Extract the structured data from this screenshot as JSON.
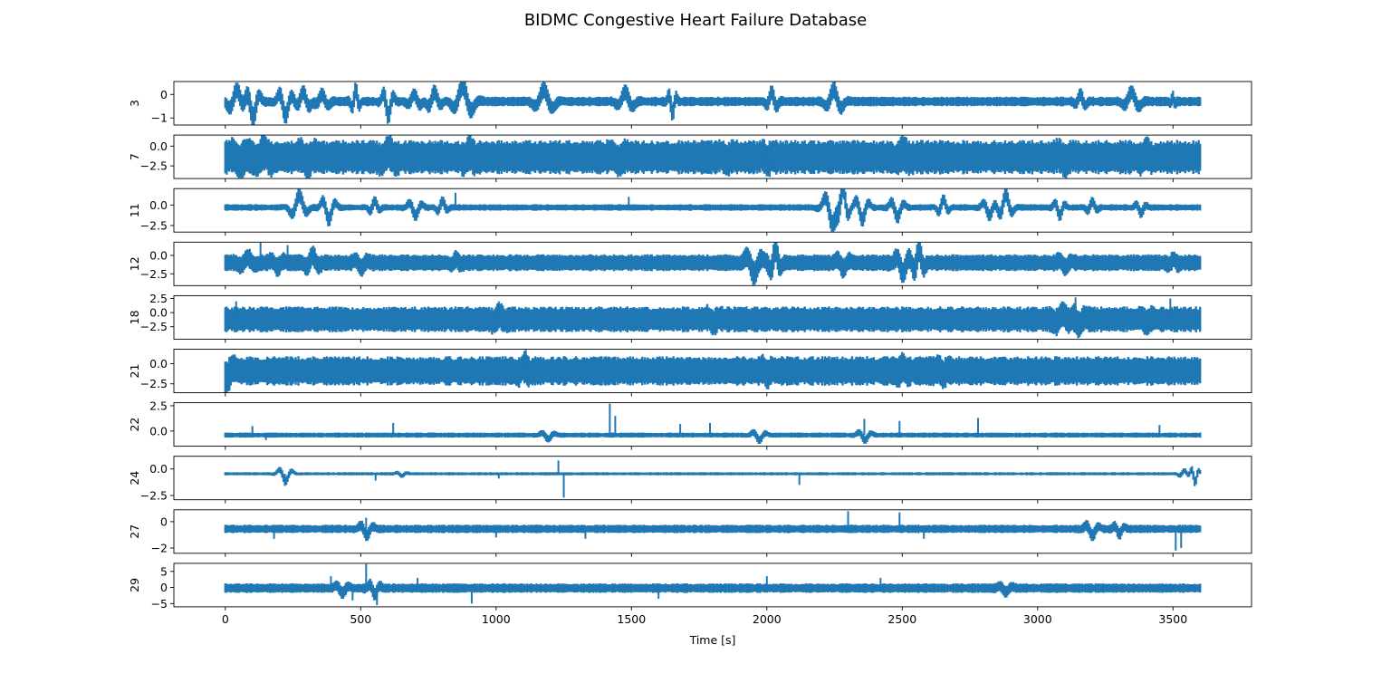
{
  "chart_data": {
    "type": "line",
    "title": "BIDMC Congestive Heart Failure Database",
    "xlabel": "Time [s]",
    "xlim": [
      -190,
      3790
    ],
    "xticks": [
      0,
      500,
      1000,
      1500,
      2000,
      2500,
      3000,
      3500
    ],
    "x_end": 3600,
    "color": "#1f77b4",
    "grid": false,
    "legend": "none",
    "series": [
      {
        "name": "3",
        "ylim": [
          -1.3,
          0.55
        ],
        "yticks": [
          -1,
          0
        ],
        "yticklabels": [
          "−1",
          "0"
        ],
        "center": -0.3,
        "band": 0.18,
        "events": [
          [
            40,
            0.5,
            0.6
          ],
          [
            100,
            -0.7,
            0.5
          ],
          [
            220,
            -0.6,
            0.5
          ],
          [
            290,
            0.4,
            -0.5
          ],
          [
            360,
            0.3,
            -0.5
          ],
          [
            480,
            0.5,
            0.3
          ],
          [
            600,
            -0.6,
            0.4
          ],
          [
            700,
            0.3,
            -0.5
          ],
          [
            770,
            0.4,
            0.5
          ],
          [
            880,
            0.7,
            -0.7
          ],
          [
            1180,
            0.5,
            -0.7
          ],
          [
            1480,
            0.4,
            -0.6
          ],
          [
            1650,
            -0.5,
            0.3
          ],
          [
            2020,
            0.4,
            -0.4
          ],
          [
            2250,
            0.5,
            -0.6
          ],
          [
            3160,
            0.3,
            -0.4
          ],
          [
            3350,
            0.4,
            -0.6
          ],
          [
            3500,
            0.2,
            -0.2
          ]
        ],
        "spikes": []
      },
      {
        "name": "7",
        "ylim": [
          -4.1,
          1.4
        ],
        "yticks": [
          -2.5,
          0.0
        ],
        "yticklabels": [
          "−2.5",
          "0.0"
        ],
        "center": -1.4,
        "band": 1.9,
        "events": [
          [
            50,
            -0.6,
            0.6
          ],
          [
            140,
            0.8,
            0.6
          ],
          [
            300,
            -0.6,
            0.6
          ],
          [
            600,
            0.7,
            0.6
          ],
          [
            900,
            0.6,
            0.5
          ],
          [
            1450,
            -0.5,
            0.6
          ],
          [
            1850,
            -0.4,
            0.5
          ],
          [
            2000,
            -0.5,
            0.4
          ],
          [
            2500,
            0.5,
            0.6
          ],
          [
            3100,
            -0.5,
            0.6
          ],
          [
            3400,
            0.5,
            0.5
          ]
        ],
        "spikes": [
          [
            2000,
            -2.5
          ],
          [
            2010,
            -3.5
          ]
        ]
      },
      {
        "name": "11",
        "ylim": [
          -3.3,
          2.0
        ],
        "yticks": [
          -2.5,
          0.0
        ],
        "yticklabels": [
          "−2.5",
          "0.0"
        ],
        "center": -0.3,
        "band": 0.35,
        "events": [
          [
            270,
            1.5,
            0.6
          ],
          [
            380,
            -1.5,
            0.5
          ],
          [
            550,
            0.8,
            0.4
          ],
          [
            700,
            -1.0,
            0.5
          ],
          [
            800,
            0.8,
            0.4
          ],
          [
            2240,
            -2.2,
            0.6
          ],
          [
            2280,
            2.2,
            0.4
          ],
          [
            2350,
            -1.5,
            0.5
          ],
          [
            2480,
            -1.2,
            0.5
          ],
          [
            2650,
            1.0,
            0.4
          ],
          [
            2820,
            -1.0,
            0.5
          ],
          [
            2880,
            1.6,
            0.5
          ],
          [
            3080,
            -1.0,
            0.4
          ],
          [
            3200,
            0.7,
            0.4
          ],
          [
            3380,
            -0.7,
            0.4
          ]
        ],
        "spikes": [
          [
            850,
            1.5
          ],
          [
            1490,
            1.0
          ]
        ]
      },
      {
        "name": "12",
        "ylim": [
          -4.1,
          1.8
        ],
        "yticks": [
          -2.5,
          0.0
        ],
        "yticklabels": [
          "−2.5",
          "0.0"
        ],
        "center": -1.0,
        "band": 1.0,
        "events": [
          [
            80,
            0.7,
            0.6
          ],
          [
            190,
            -0.6,
            0.5
          ],
          [
            320,
            1.0,
            0.5
          ],
          [
            500,
            -0.7,
            0.5
          ],
          [
            850,
            0.5,
            0.4
          ],
          [
            1950,
            -1.5,
            0.6
          ],
          [
            2030,
            1.8,
            0.4
          ],
          [
            2280,
            -0.8,
            0.5
          ],
          [
            2500,
            -1.4,
            0.5
          ],
          [
            2560,
            1.8,
            0.4
          ],
          [
            3100,
            -0.6,
            0.5
          ],
          [
            3500,
            0.5,
            0.4
          ]
        ],
        "spikes": [
          [
            130,
            1.8
          ],
          [
            230,
            1.4
          ]
        ]
      },
      {
        "name": "18",
        "ylim": [
          -4.7,
          3.0
        ],
        "yticks": [
          -2.5,
          0.0,
          2.5
        ],
        "yticklabels": [
          "−2.5",
          "0.0",
          "2.5"
        ],
        "center": -1.2,
        "band": 2.0,
        "events": [
          [
            1010,
            0.7,
            0.5
          ],
          [
            1800,
            -0.6,
            0.5
          ],
          [
            3090,
            1.0,
            0.6
          ],
          [
            3150,
            -1.0,
            0.5
          ],
          [
            3400,
            -0.6,
            0.5
          ]
        ],
        "spikes": [
          [
            40,
            2.0
          ],
          [
            1010,
            2.0
          ],
          [
            3140,
            2.7
          ],
          [
            3490,
            2.5
          ]
        ]
      },
      {
        "name": "21",
        "ylim": [
          -3.6,
          1.8
        ],
        "yticks": [
          -2.5,
          0.0
        ],
        "yticklabels": [
          "−2.5",
          "0.0"
        ],
        "center": -0.9,
        "band": 1.6,
        "events": [
          [
            0,
            -1.0,
            0.6
          ],
          [
            1100,
            0.5,
            0.5
          ],
          [
            2000,
            -0.5,
            0.4
          ],
          [
            2500,
            0.5,
            0.4
          ],
          [
            2650,
            -0.5,
            0.4
          ]
        ],
        "spikes": [
          [
            1110,
            1.7
          ]
        ]
      },
      {
        "name": "22",
        "ylim": [
          -1.5,
          2.8
        ],
        "yticks": [
          0.0,
          2.5
        ],
        "yticklabels": [
          "0.0",
          "2.5"
        ],
        "center": -0.4,
        "band": 0.22,
        "events": [
          [
            1190,
            -0.4,
            0.5
          ],
          [
            1970,
            -0.5,
            0.5
          ],
          [
            2360,
            -0.5,
            0.5
          ]
        ],
        "spikes": [
          [
            100,
            0.5
          ],
          [
            150,
            -0.9
          ],
          [
            620,
            0.8
          ],
          [
            1190,
            -0.8
          ],
          [
            1420,
            2.7
          ],
          [
            1440,
            1.5
          ],
          [
            1680,
            0.7
          ],
          [
            1790,
            0.8
          ],
          [
            2360,
            1.2
          ],
          [
            2490,
            1.0
          ],
          [
            2780,
            1.3
          ],
          [
            3450,
            0.6
          ]
        ]
      },
      {
        "name": "24",
        "ylim": [
          -2.9,
          1.2
        ],
        "yticks": [
          -2.5,
          0.0
        ],
        "yticklabels": [
          "−2.5",
          "0.0"
        ],
        "center": -0.45,
        "band": 0.13,
        "events": [
          [
            220,
            -0.7,
            0.5
          ],
          [
            650,
            -0.2,
            0.4
          ],
          [
            3540,
            0.3,
            0.4
          ],
          [
            3580,
            -0.8,
            0.3
          ]
        ],
        "spikes": [
          [
            220,
            -1.6
          ],
          [
            555,
            -1.1
          ],
          [
            1010,
            -0.9
          ],
          [
            1230,
            0.8
          ],
          [
            1250,
            -2.7
          ],
          [
            2120,
            -1.5
          ]
        ]
      },
      {
        "name": "27",
        "ylim": [
          -2.4,
          0.9
        ],
        "yticks": [
          -2,
          0
        ],
        "yticklabels": [
          "−2",
          "0"
        ],
        "center": -0.55,
        "band": 0.28,
        "events": [
          [
            520,
            -0.5,
            0.5
          ],
          [
            3200,
            -0.5,
            0.5
          ],
          [
            3300,
            -0.4,
            0.4
          ]
        ],
        "spikes": [
          [
            180,
            -1.3
          ],
          [
            520,
            0.3
          ],
          [
            1000,
            -1.2
          ],
          [
            1330,
            -1.3
          ],
          [
            2300,
            0.8
          ],
          [
            2490,
            0.7
          ],
          [
            2580,
            -1.3
          ],
          [
            3510,
            -2.2
          ],
          [
            3530,
            -2.0
          ]
        ]
      },
      {
        "name": "29",
        "ylim": [
          -6.0,
          7.5
        ],
        "yticks": [
          -5,
          0,
          5
        ],
        "yticklabels": [
          "−5",
          "0",
          "5"
        ],
        "center": -0.2,
        "band": 1.3,
        "events": [
          [
            430,
            -1.5,
            0.5
          ],
          [
            550,
            -2.0,
            0.4
          ],
          [
            2880,
            -1.2,
            0.5
          ]
        ],
        "spikes": [
          [
            390,
            3.5
          ],
          [
            470,
            -4.0
          ],
          [
            520,
            7.3
          ],
          [
            560,
            -5.5
          ],
          [
            710,
            3.0
          ],
          [
            910,
            -5.0
          ],
          [
            1600,
            -3.5
          ],
          [
            2000,
            3.5
          ],
          [
            2420,
            3.0
          ]
        ]
      }
    ]
  }
}
